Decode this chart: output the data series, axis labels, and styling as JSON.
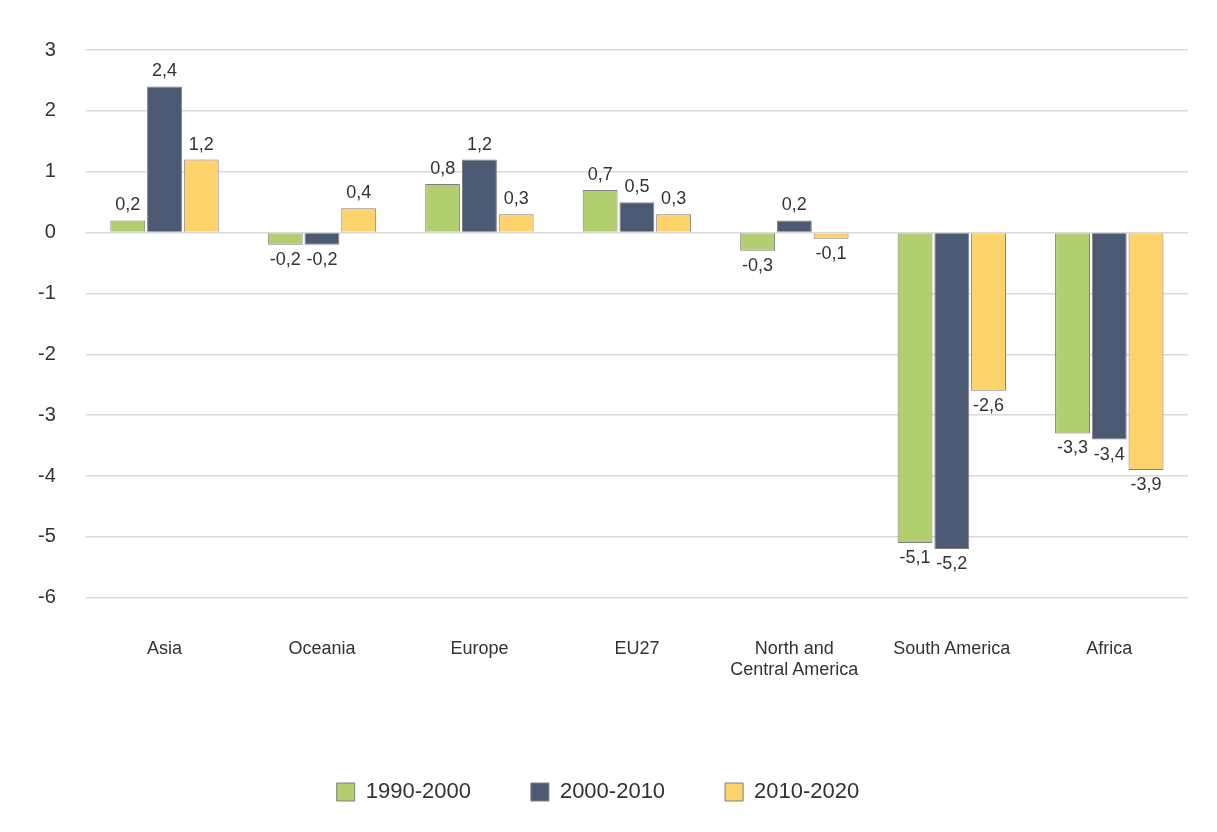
{
  "chart_data": {
    "type": "bar",
    "categories": [
      "Asia",
      "Oceania",
      "Europe",
      "EU27",
      "North and Central America",
      "South America",
      "Africa"
    ],
    "series": [
      {
        "name": "1990-2000",
        "color": "#b1cf6f",
        "values": [
          0.2,
          -0.2,
          0.8,
          0.7,
          -0.3,
          -5.1,
          -3.3
        ],
        "value_labels": [
          "0,2",
          "-0,2",
          "0,8",
          "0,7",
          "-0,3",
          "-5,1",
          "-3,3"
        ]
      },
      {
        "name": "2000-2010",
        "color": "#4b5a72",
        "values": [
          2.4,
          -0.2,
          1.2,
          0.5,
          0.2,
          -5.2,
          -3.4
        ],
        "value_labels": [
          "2,4",
          "-0,2",
          "1,2",
          "0,5",
          "0,2",
          "-5,2",
          "-3,4"
        ]
      },
      {
        "name": "2010-2020",
        "color": "#ffd36b",
        "values": [
          1.2,
          0.4,
          0.3,
          0.3,
          -0.1,
          -2.6,
          -3.9
        ],
        "value_labels": [
          "1,2",
          "0,4",
          "0,3",
          "0,3",
          "-0,1",
          "-2,6",
          "-3,9"
        ]
      }
    ],
    "ylim": [
      -6,
      3
    ],
    "yticks": [
      -6,
      -5,
      -4,
      -3,
      -2,
      -1,
      0,
      1,
      2,
      3
    ],
    "grid": "y",
    "legend": "bottom"
  }
}
